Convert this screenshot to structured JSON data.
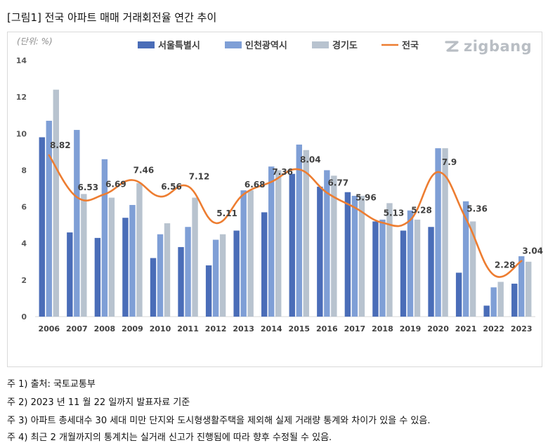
{
  "caption": "[그림1] 전국 아파트 매매 거래회전율 연간 추이",
  "logo": {
    "text": "zigbang",
    "icon": "zigbang-logo-icon"
  },
  "chart_data": {
    "type": "bar",
    "unit_label": "(단위: %)",
    "categories": [
      "2006",
      "2007",
      "2008",
      "2009",
      "2010",
      "2011",
      "2012",
      "2013",
      "2014",
      "2015",
      "2016",
      "2017",
      "2018",
      "2019",
      "2020",
      "2021",
      "2022",
      "2023"
    ],
    "ylim": [
      0,
      14
    ],
    "yticks": [
      0,
      2,
      4,
      6,
      8,
      10,
      12,
      14
    ],
    "grid": false,
    "legend_position": "top",
    "series": [
      {
        "name": "서울특별시",
        "kind": "bar",
        "color": "#4a6db8",
        "values": [
          9.8,
          4.6,
          4.3,
          5.4,
          3.2,
          3.8,
          2.8,
          4.7,
          5.7,
          7.8,
          7.1,
          6.8,
          5.2,
          4.7,
          4.9,
          2.4,
          0.6,
          1.8
        ]
      },
      {
        "name": "인천광역시",
        "kind": "bar",
        "color": "#7f9fd6",
        "values": [
          10.7,
          10.2,
          8.6,
          6.1,
          4.5,
          4.9,
          4.2,
          6.9,
          8.2,
          9.4,
          8.0,
          6.6,
          5.3,
          5.8,
          9.2,
          6.3,
          1.6,
          3.3
        ]
      },
      {
        "name": "경기도",
        "kind": "bar",
        "color": "#b8c3cf",
        "values": [
          12.4,
          6.7,
          6.5,
          7.3,
          5.1,
          6.5,
          4.5,
          6.9,
          8.0,
          9.1,
          7.7,
          6.6,
          6.2,
          5.3,
          9.2,
          5.2,
          1.9,
          3.0
        ]
      },
      {
        "name": "전국",
        "kind": "line",
        "color": "#ed7d31",
        "values": [
          8.82,
          6.53,
          6.69,
          7.46,
          6.56,
          7.12,
          5.11,
          6.68,
          7.36,
          8.04,
          6.77,
          5.96,
          5.13,
          5.28,
          7.9,
          5.36,
          2.28,
          3.04
        ],
        "labels": [
          "8.82",
          "6.53",
          "6.69",
          "7.46",
          "6.56",
          "7.12",
          "5.11",
          "6.68",
          "7.36",
          "8.04",
          "6.77",
          "5.96",
          "5.13",
          "5.28",
          "7.9",
          "5.36",
          "2.28",
          "3.04"
        ]
      }
    ]
  },
  "notes": [
    "주 1) 출처: 국토교통부",
    "주 2) 2023 년 11 월 22 일까지 발표자료 기준",
    "주 3) 아파트 총세대수 30 세대 미만 단지와 도시형생활주택을 제외해 실제 거래량 통계와 차이가 있을 수 있음.",
    "주 4) 최근 2 개월까지의 통계치는 실거래 신고가 진행됨에 따라 향후 수정될 수 있음."
  ]
}
